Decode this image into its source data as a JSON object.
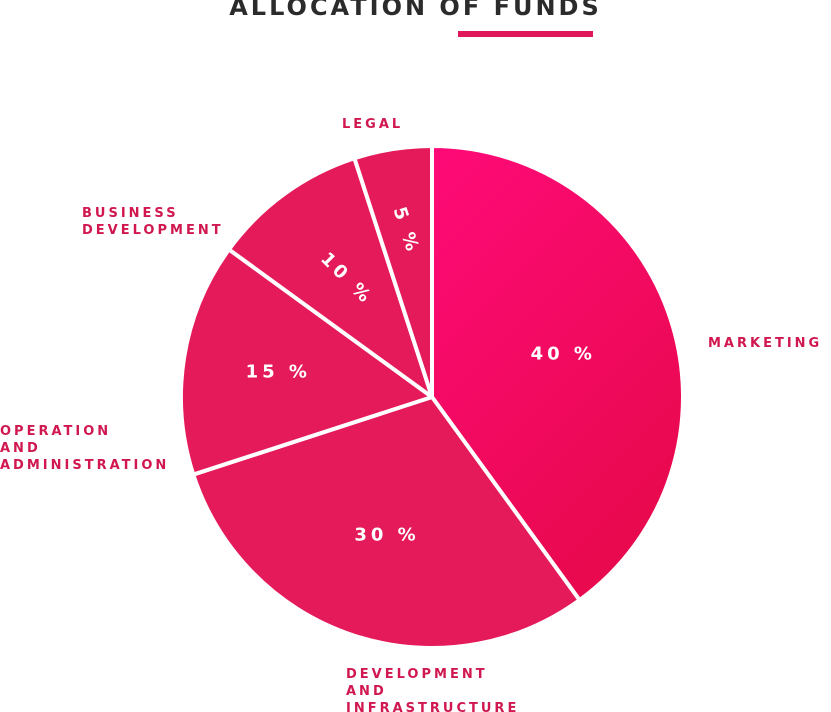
{
  "chart_data": {
    "type": "pie",
    "title": "ALLOCATION OF FUNDS",
    "slices": [
      {
        "label": [
          "MARKETING"
        ],
        "value": 40,
        "pct_text": "40 %"
      },
      {
        "label": [
          "DEVELOPMENT",
          "AND",
          "INFRASTRUCTURE"
        ],
        "value": 30,
        "pct_text": "30 %"
      },
      {
        "label": [
          "OPERATION",
          "AND",
          "ADMINISTRATION"
        ],
        "value": 15,
        "pct_text": "15 %"
      },
      {
        "label": [
          "BUSINESS",
          "DEVELOPMENT"
        ],
        "value": 10,
        "pct_text": "10 %"
      },
      {
        "label": [
          "LEGAL"
        ],
        "value": 5,
        "pct_text": "5 %"
      }
    ]
  },
  "colors": {
    "accent": "#e0175b",
    "slice": "#e51a5a",
    "marketing_light": "#ff0a78",
    "marketing_dark": "#e8094e",
    "label": "#d0174f",
    "title": "#2b2b2b",
    "separator": "#ffffff"
  }
}
